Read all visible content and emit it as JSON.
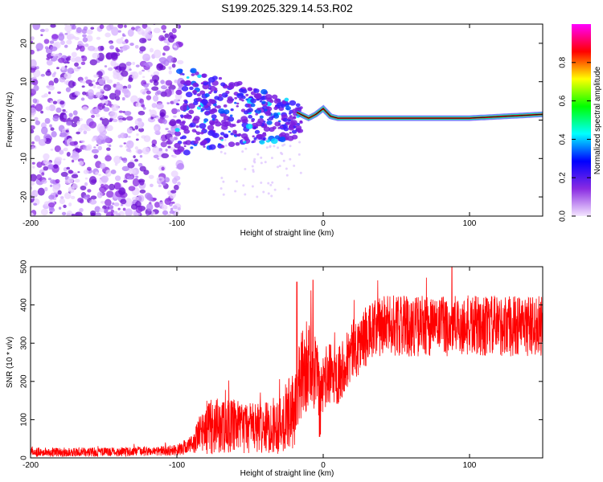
{
  "title": "S199.2025.329.14.53.R02",
  "chart_data": [
    {
      "type": "heatmap",
      "xlabel": "Height of straight line (km)",
      "ylabel": "Frequency (Hz)",
      "xlim": [
        -200,
        150
      ],
      "ylim": [
        -25,
        25
      ],
      "xticks": [
        -200,
        -100,
        0,
        100
      ],
      "xtick_labels": [
        "-200",
        "-100",
        "0",
        "100"
      ],
      "yticks": [
        -20,
        -10,
        0,
        10,
        20
      ],
      "ytick_labels": [
        "-20",
        "-10",
        "0",
        "10",
        "20"
      ],
      "colorbar": {
        "label": "Normalized spectral amplitude",
        "range": [
          0,
          1
        ],
        "ticks": [
          0,
          0.2,
          0.4,
          0.6,
          0.8
        ],
        "tick_labels": [
          "0.0",
          "0.2",
          "0.4",
          "0.6",
          "0.8"
        ],
        "colors": [
          "#f4e6ff",
          "#8a2be2",
          "#0000ff",
          "#00ffff",
          "#00ff00",
          "#ffff00",
          "#ff0000",
          "#ff00ff"
        ]
      },
      "line": {
        "x": [
          -18,
          -10,
          -5,
          0,
          5,
          10,
          50,
          100,
          150
        ],
        "y": [
          2,
          0.5,
          1.5,
          3,
          1,
          0.5,
          0.5,
          0.5,
          1.5
        ]
      }
    },
    {
      "type": "line",
      "xlabel": "Height of straight line (km)",
      "ylabel": "SNR (10 * v/v)",
      "xlim": [
        -200,
        150
      ],
      "ylim": [
        0,
        500
      ],
      "xticks": [
        -200,
        -100,
        0,
        100
      ],
      "xtick_labels": [
        "-200",
        "-100",
        "0",
        "100"
      ],
      "yticks": [
        0,
        100,
        200,
        300,
        400,
        500
      ],
      "ytick_labels": [
        "0",
        "100",
        "200",
        "300",
        "400",
        "500"
      ],
      "color": "#ff0000",
      "series": [
        {
          "name": "SNR",
          "x": [
            -200,
            -180,
            -160,
            -140,
            -120,
            -100,
            -90,
            -85,
            -80,
            -70,
            -60,
            -50,
            -40,
            -30,
            -25,
            -20,
            -15,
            -10,
            -5,
            -2,
            0,
            5,
            10,
            20,
            30,
            40,
            50,
            60,
            70,
            80,
            90,
            100,
            110,
            120,
            130,
            140,
            150
          ],
          "mean": [
            15,
            15,
            15,
            16,
            17,
            20,
            35,
            60,
            80,
            85,
            80,
            80,
            78,
            90,
            110,
            120,
            210,
            250,
            230,
            120,
            200,
            220,
            220,
            280,
            320,
            345,
            345,
            345,
            345,
            345,
            345,
            345,
            345,
            345,
            345,
            345,
            345
          ],
          "spread": [
            12,
            12,
            12,
            12,
            12,
            14,
            25,
            45,
            70,
            75,
            70,
            70,
            65,
            80,
            90,
            100,
            120,
            120,
            110,
            90,
            90,
            80,
            80,
            80,
            80,
            80,
            80,
            80,
            80,
            80,
            80,
            80,
            80,
            80,
            80,
            80,
            80
          ],
          "notable_peaks": [
            {
              "x": -18,
              "y": 460
            },
            {
              "x": -7,
              "y": 465
            },
            {
              "x": 88,
              "y": 500
            }
          ]
        }
      ]
    }
  ]
}
